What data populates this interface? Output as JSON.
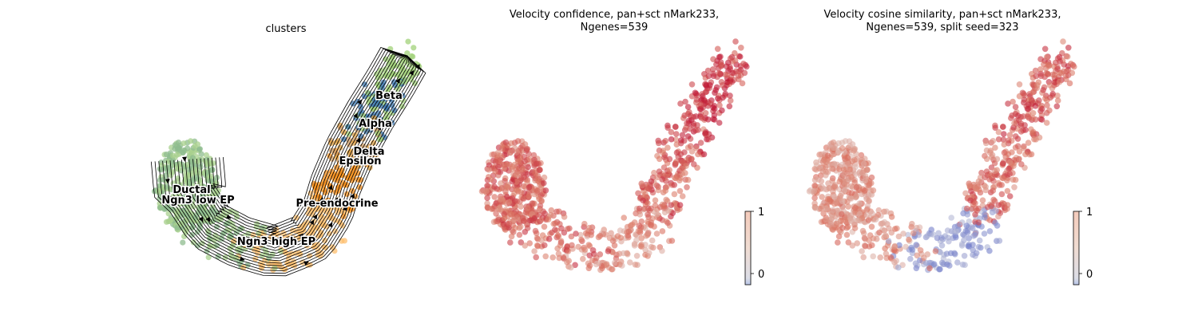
{
  "chart_data": [
    {
      "type": "scatter",
      "title": "clusters",
      "embedding": "umap",
      "overlay": "velocity-stream",
      "colors": {
        "Ductal": "#8fbc8f",
        "Ngn3 low EP": "#a8d08d",
        "Ngn3 high EP": "#fdbf6f",
        "Pre-endocrine": "#f7901e",
        "Epsilon": "#d2a06a",
        "Delta": "#e0a040",
        "Alpha": "#3b75af",
        "Beta": "#a2d27a"
      },
      "labels": [
        {
          "text": "Ductal"
        },
        {
          "text": "Ngn3 low EP"
        },
        {
          "text": "Pre-endocrine"
        },
        {
          "text": "Ngn3 high EP"
        },
        {
          "text": "Beta"
        },
        {
          "text": "Alpha"
        },
        {
          "text": "Delta"
        },
        {
          "text": "Epsilon"
        }
      ]
    },
    {
      "type": "scatter",
      "title": "Velocity confidence, pan+sct nMark233,\nNgenes=539",
      "colormap": "coolwarm",
      "colorbar": {
        "ticks": [
          "0",
          "1"
        ],
        "range": [
          -0.1,
          1
        ]
      },
      "values_by_region": {
        "left_lobe": 0.82,
        "bottom": 0.72,
        "right_arm_lower": 0.85,
        "right_arm_upper": 0.95
      }
    },
    {
      "type": "scatter",
      "title": "Velocity cosine similarity, pan+sct nMark233,\nNgenes=539, split seed=323",
      "colormap": "coolwarm",
      "colorbar": {
        "ticks": [
          "0",
          "1"
        ],
        "range": [
          -0.1,
          1
        ]
      },
      "values_by_region": {
        "left_lobe": 0.7,
        "bottom": 0.2,
        "right_arm_lower": 0.8,
        "right_arm_upper": 0.85
      }
    }
  ]
}
